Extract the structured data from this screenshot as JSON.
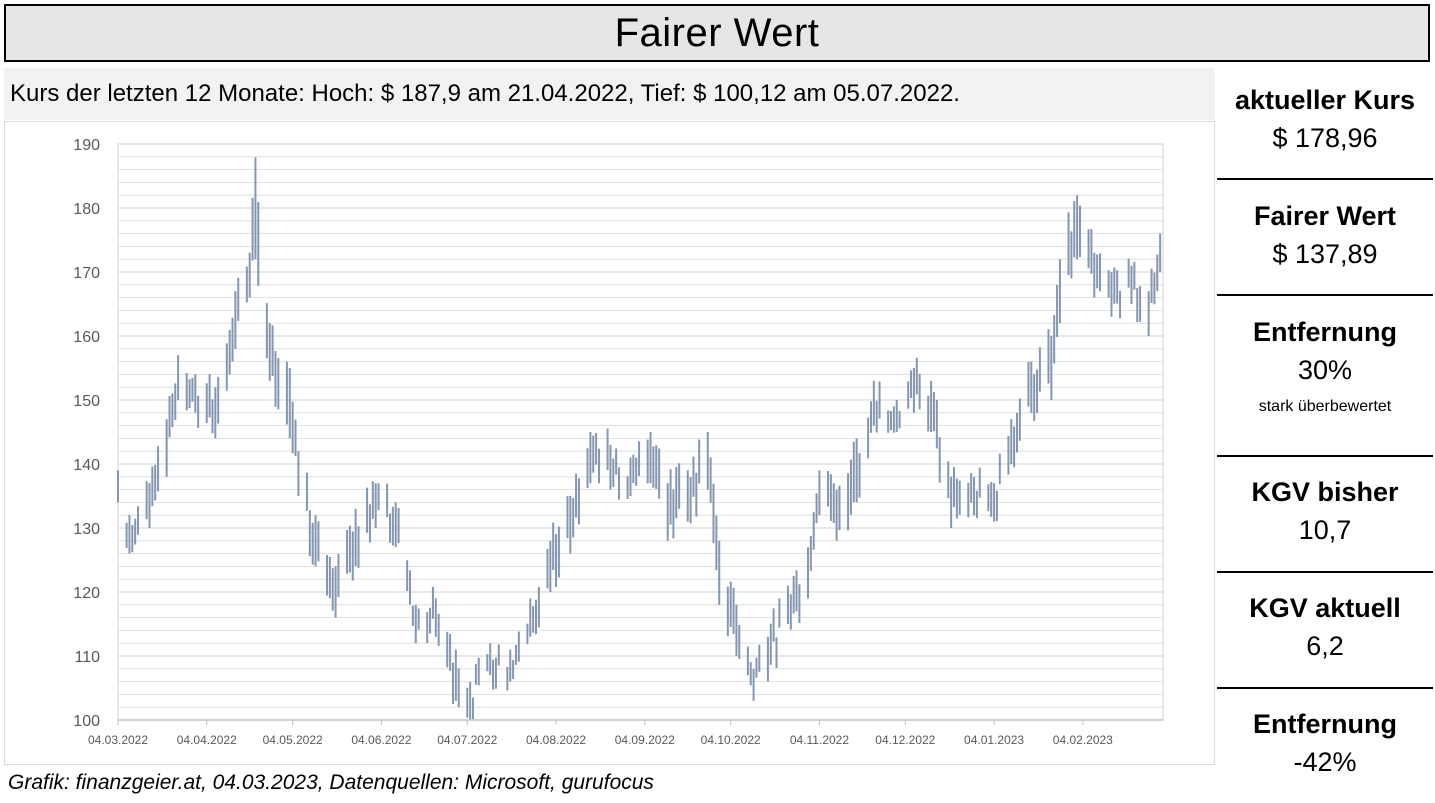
{
  "header": {
    "title": "Fairer Wert",
    "subtitle": "Kurs der letzten 12 Monate: Hoch: $ 187,9 am 21.04.2022, Tief: $ 100,12 am 05.07.2022."
  },
  "footer": {
    "caption": "Grafik: finanzgeier.at, 04.03.2023, Datenquellen: Microsoft, gurufocus"
  },
  "metrics": [
    {
      "label": "aktueller Kurs",
      "value": "$ 178,96"
    },
    {
      "label": "Fairer Wert",
      "value": "$ 137,89"
    },
    {
      "label": "Entfernung",
      "value": "30%",
      "note": "stark überbewertet"
    },
    {
      "label": "KGV bisher",
      "value": "10,7"
    },
    {
      "label": "KGV aktuell",
      "value": "6,2"
    },
    {
      "label": "Entfernung",
      "value": "-42%"
    }
  ],
  "colors": {
    "bar": "#8496b0",
    "grid": "#d9d9d9",
    "axis_text": "#595959",
    "title_bg": "#e6e6e6"
  },
  "chart_data": {
    "type": "bar",
    "subtype": "high-low range",
    "title": "",
    "xlabel": "",
    "ylabel": "",
    "ylim": [
      100,
      190
    ],
    "y_ticks": [
      "100",
      "110",
      "120",
      "130",
      "140",
      "150",
      "160",
      "170",
      "180",
      "190"
    ],
    "x_range": [
      "04.03.2022",
      "04.03.2023"
    ],
    "x_ticks": [
      "04.03.2022",
      "04.04.2022",
      "04.05.2022",
      "04.06.2022",
      "04.07.2022",
      "04.08.2022",
      "04.09.2022",
      "04.10.2022",
      "04.11.2022",
      "04.12.2022",
      "04.01.2023",
      "04.02.2023"
    ],
    "grid": true,
    "legend": "none",
    "anchors": [
      {
        "date": "2022-03-04",
        "low": 134,
        "high": 139
      },
      {
        "date": "2022-03-08",
        "low": 126,
        "high": 132
      },
      {
        "date": "2022-03-15",
        "low": 130,
        "high": 137
      },
      {
        "date": "2022-03-21",
        "low": 138,
        "high": 147
      },
      {
        "date": "2022-03-25",
        "low": 150,
        "high": 157
      },
      {
        "date": "2022-03-31",
        "low": 148,
        "high": 154
      },
      {
        "date": "2022-04-07",
        "low": 144,
        "high": 152
      },
      {
        "date": "2022-04-14",
        "low": 158,
        "high": 167
      },
      {
        "date": "2022-04-19",
        "low": 166,
        "high": 173
      },
      {
        "date": "2022-04-21",
        "low": 172,
        "high": 187.9
      },
      {
        "date": "2022-04-26",
        "low": 153,
        "high": 162
      },
      {
        "date": "2022-05-03",
        "low": 144,
        "high": 155
      },
      {
        "date": "2022-05-06",
        "low": 135,
        "high": 142
      },
      {
        "date": "2022-05-12",
        "low": 124,
        "high": 132
      },
      {
        "date": "2022-05-19",
        "low": 116,
        "high": 124
      },
      {
        "date": "2022-05-26",
        "low": 124,
        "high": 133
      },
      {
        "date": "2022-06-02",
        "low": 130,
        "high": 137
      },
      {
        "date": "2022-06-09",
        "low": 127,
        "high": 134
      },
      {
        "date": "2022-06-16",
        "low": 112,
        "high": 118
      },
      {
        "date": "2022-06-23",
        "low": 113,
        "high": 119
      },
      {
        "date": "2022-06-30",
        "low": 103,
        "high": 111
      },
      {
        "date": "2022-07-05",
        "low": 100.12,
        "high": 106
      },
      {
        "date": "2022-07-12",
        "low": 107,
        "high": 112
      },
      {
        "date": "2022-07-19",
        "low": 106,
        "high": 111
      },
      {
        "date": "2022-07-26",
        "low": 113,
        "high": 119
      },
      {
        "date": "2022-08-02",
        "low": 120,
        "high": 128
      },
      {
        "date": "2022-08-09",
        "low": 126,
        "high": 135
      },
      {
        "date": "2022-08-16",
        "low": 137,
        "high": 145
      },
      {
        "date": "2022-08-23",
        "low": 136,
        "high": 143
      },
      {
        "date": "2022-08-30",
        "low": 135,
        "high": 141
      },
      {
        "date": "2022-09-06",
        "low": 137,
        "high": 145
      },
      {
        "date": "2022-09-12",
        "low": 128,
        "high": 137
      },
      {
        "date": "2022-09-19",
        "low": 131,
        "high": 139
      },
      {
        "date": "2022-09-26",
        "low": 136,
        "high": 145
      },
      {
        "date": "2022-09-30",
        "low": 118,
        "high": 128
      },
      {
        "date": "2022-10-06",
        "low": 110,
        "high": 118
      },
      {
        "date": "2022-10-12",
        "low": 103,
        "high": 108
      },
      {
        "date": "2022-10-17",
        "low": 106,
        "high": 113
      },
      {
        "date": "2022-10-24",
        "low": 115,
        "high": 121
      },
      {
        "date": "2022-10-31",
        "low": 119,
        "high": 127
      },
      {
        "date": "2022-11-04",
        "low": 132,
        "high": 139
      },
      {
        "date": "2022-11-10",
        "low": 128,
        "high": 136
      },
      {
        "date": "2022-11-17",
        "low": 134,
        "high": 144
      },
      {
        "date": "2022-11-23",
        "low": 146,
        "high": 153
      },
      {
        "date": "2022-12-01",
        "low": 145,
        "high": 150
      },
      {
        "date": "2022-12-07",
        "low": 148,
        "high": 155
      },
      {
        "date": "2022-12-13",
        "low": 145,
        "high": 153
      },
      {
        "date": "2022-12-20",
        "low": 130,
        "high": 138
      },
      {
        "date": "2022-12-28",
        "low": 132,
        "high": 138
      },
      {
        "date": "2023-01-04",
        "low": 131,
        "high": 137
      },
      {
        "date": "2023-01-10",
        "low": 140,
        "high": 147
      },
      {
        "date": "2023-01-17",
        "low": 148,
        "high": 156
      },
      {
        "date": "2023-01-24",
        "low": 150,
        "high": 160
      },
      {
        "date": "2023-01-27",
        "low": 162,
        "high": 172
      },
      {
        "date": "2023-02-02",
        "low": 172,
        "high": 182
      },
      {
        "date": "2023-02-08",
        "low": 166,
        "high": 173
      },
      {
        "date": "2023-02-14",
        "low": 163,
        "high": 170
      },
      {
        "date": "2023-02-21",
        "low": 165,
        "high": 171
      },
      {
        "date": "2023-02-27",
        "low": 160,
        "high": 167
      },
      {
        "date": "2023-03-03",
        "low": 170,
        "high": 176
      }
    ]
  }
}
